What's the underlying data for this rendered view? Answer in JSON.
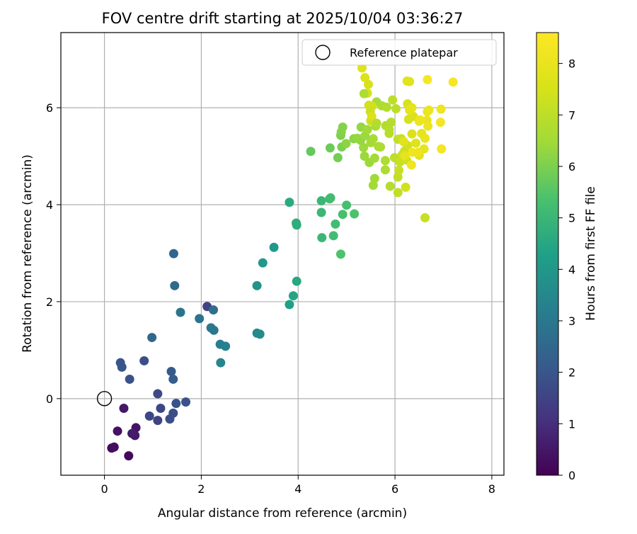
{
  "chart_data": {
    "type": "scatter",
    "title": "FOV centre drift starting at 2025/10/04 03:36:27",
    "xlabel": "Angular distance from reference (arcmin)",
    "ylabel": "Rotation from reference (arcmin)",
    "xlim": [
      -0.9,
      8.25
    ],
    "ylim": [
      -1.58,
      7.55
    ],
    "xticks": [
      0,
      2,
      4,
      6,
      8
    ],
    "yticks": [
      0,
      2,
      4,
      6
    ],
    "grid": true,
    "legend_position": "top-right",
    "legend": {
      "label": "Reference platepar",
      "marker": "open-circle"
    },
    "reference_point": {
      "x": 0,
      "y": 0
    },
    "colorbar": {
      "label": "Hours from first FF file",
      "range": [
        0,
        8.6
      ],
      "ticks": [
        0,
        1,
        2,
        3,
        4,
        5,
        6,
        7,
        8
      ],
      "colormap": "viridis"
    },
    "points": [
      {
        "x": 0.15,
        "y": -1.02,
        "h": 0.2
      },
      {
        "x": 0.2,
        "y": -1.0,
        "h": 0.3
      },
      {
        "x": 0.27,
        "y": -0.67,
        "h": 0.35
      },
      {
        "x": 0.5,
        "y": -1.18,
        "h": 0.2
      },
      {
        "x": 0.65,
        "y": -0.6,
        "h": 0.4
      },
      {
        "x": 0.63,
        "y": -0.76,
        "h": 0.5
      },
      {
        "x": 0.57,
        "y": -0.72,
        "h": 0.6
      },
      {
        "x": 0.4,
        "y": -0.2,
        "h": 0.5
      },
      {
        "x": 0.33,
        "y": 0.74,
        "h": 2.0
      },
      {
        "x": 0.36,
        "y": 0.65,
        "h": 2.0
      },
      {
        "x": 0.52,
        "y": 0.4,
        "h": 1.9
      },
      {
        "x": 0.82,
        "y": 0.78,
        "h": 1.8
      },
      {
        "x": 0.93,
        "y": -0.36,
        "h": 1.6
      },
      {
        "x": 1.1,
        "y": -0.45,
        "h": 1.5
      },
      {
        "x": 1.1,
        "y": 0.1,
        "h": 1.7
      },
      {
        "x": 1.16,
        "y": -0.2,
        "h": 1.6
      },
      {
        "x": 1.35,
        "y": -0.42,
        "h": 1.8
      },
      {
        "x": 1.42,
        "y": -0.3,
        "h": 1.8
      },
      {
        "x": 1.48,
        "y": -0.1,
        "h": 1.9
      },
      {
        "x": 1.68,
        "y": -0.07,
        "h": 1.9
      },
      {
        "x": 1.38,
        "y": 0.56,
        "h": 2.1
      },
      {
        "x": 1.42,
        "y": 0.4,
        "h": 2.2
      },
      {
        "x": 0.98,
        "y": 1.26,
        "h": 2.5
      },
      {
        "x": 1.43,
        "y": 2.99,
        "h": 2.5
      },
      {
        "x": 1.45,
        "y": 2.33,
        "h": 2.6
      },
      {
        "x": 1.57,
        "y": 1.78,
        "h": 2.9
      },
      {
        "x": 1.96,
        "y": 1.65,
        "h": 2.9
      },
      {
        "x": 2.12,
        "y": 1.9,
        "h": 1.5
      },
      {
        "x": 2.25,
        "y": 1.83,
        "h": 2.7
      },
      {
        "x": 2.2,
        "y": 1.46,
        "h": 3.0
      },
      {
        "x": 2.26,
        "y": 1.41,
        "h": 3.0
      },
      {
        "x": 2.39,
        "y": 1.12,
        "h": 3.2
      },
      {
        "x": 2.5,
        "y": 1.08,
        "h": 3.3
      },
      {
        "x": 2.4,
        "y": 0.74,
        "h": 3.4
      },
      {
        "x": 3.15,
        "y": 1.35,
        "h": 3.5
      },
      {
        "x": 3.21,
        "y": 1.33,
        "h": 3.6
      },
      {
        "x": 3.15,
        "y": 2.33,
        "h": 3.9
      },
      {
        "x": 3.27,
        "y": 2.8,
        "h": 4.0
      },
      {
        "x": 3.5,
        "y": 3.12,
        "h": 4.0
      },
      {
        "x": 3.82,
        "y": 1.94,
        "h": 4.3
      },
      {
        "x": 3.9,
        "y": 2.12,
        "h": 4.4
      },
      {
        "x": 3.97,
        "y": 2.42,
        "h": 4.5
      },
      {
        "x": 3.82,
        "y": 4.05,
        "h": 4.6
      },
      {
        "x": 3.96,
        "y": 3.62,
        "h": 4.7
      },
      {
        "x": 3.97,
        "y": 3.58,
        "h": 4.7
      },
      {
        "x": 4.48,
        "y": 4.08,
        "h": 5.0
      },
      {
        "x": 4.48,
        "y": 3.84,
        "h": 5.0
      },
      {
        "x": 4.49,
        "y": 3.32,
        "h": 5.0
      },
      {
        "x": 4.65,
        "y": 4.12,
        "h": 5.2
      },
      {
        "x": 4.67,
        "y": 4.14,
        "h": 5.2
      },
      {
        "x": 4.77,
        "y": 3.6,
        "h": 5.2
      },
      {
        "x": 4.73,
        "y": 3.36,
        "h": 5.2
      },
      {
        "x": 4.88,
        "y": 2.98,
        "h": 5.4
      },
      {
        "x": 4.92,
        "y": 3.8,
        "h": 5.3
      },
      {
        "x": 5.0,
        "y": 3.99,
        "h": 5.3
      },
      {
        "x": 5.16,
        "y": 3.81,
        "h": 5.4
      },
      {
        "x": 4.26,
        "y": 5.1,
        "h": 5.7
      },
      {
        "x": 4.66,
        "y": 5.17,
        "h": 5.8
      },
      {
        "x": 4.82,
        "y": 4.97,
        "h": 5.9
      },
      {
        "x": 4.9,
        "y": 5.19,
        "h": 6.0
      },
      {
        "x": 4.88,
        "y": 5.43,
        "h": 6.0
      },
      {
        "x": 4.92,
        "y": 5.6,
        "h": 6.1
      },
      {
        "x": 4.89,
        "y": 5.5,
        "h": 6.1
      },
      {
        "x": 4.99,
        "y": 5.26,
        "h": 6.2
      },
      {
        "x": 5.15,
        "y": 5.36,
        "h": 6.2
      },
      {
        "x": 5.22,
        "y": 5.37,
        "h": 6.3
      },
      {
        "x": 5.29,
        "y": 5.33,
        "h": 6.3
      },
      {
        "x": 5.35,
        "y": 5.18,
        "h": 6.4
      },
      {
        "x": 5.3,
        "y": 5.6,
        "h": 6.3
      },
      {
        "x": 5.38,
        "y": 5.42,
        "h": 6.4
      },
      {
        "x": 5.43,
        "y": 5.55,
        "h": 6.5
      },
      {
        "x": 5.5,
        "y": 5.28,
        "h": 6.5
      },
      {
        "x": 5.37,
        "y": 5.0,
        "h": 6.4
      },
      {
        "x": 5.47,
        "y": 4.87,
        "h": 6.4
      },
      {
        "x": 5.58,
        "y": 4.96,
        "h": 6.5
      },
      {
        "x": 5.55,
        "y": 4.4,
        "h": 6.5
      },
      {
        "x": 5.58,
        "y": 4.54,
        "h": 6.5
      },
      {
        "x": 5.55,
        "y": 5.36,
        "h": 6.6
      },
      {
        "x": 5.66,
        "y": 5.2,
        "h": 6.6
      },
      {
        "x": 5.7,
        "y": 5.19,
        "h": 6.7
      },
      {
        "x": 5.6,
        "y": 5.62,
        "h": 6.6
      },
      {
        "x": 5.62,
        "y": 6.12,
        "h": 6.6
      },
      {
        "x": 5.73,
        "y": 6.04,
        "h": 6.7
      },
      {
        "x": 5.83,
        "y": 6.01,
        "h": 6.8
      },
      {
        "x": 5.8,
        "y": 4.72,
        "h": 6.7
      },
      {
        "x": 5.8,
        "y": 4.91,
        "h": 6.7
      },
      {
        "x": 5.81,
        "y": 5.63,
        "h": 6.8
      },
      {
        "x": 5.88,
        "y": 5.47,
        "h": 6.9
      },
      {
        "x": 5.88,
        "y": 5.55,
        "h": 6.9
      },
      {
        "x": 5.92,
        "y": 5.7,
        "h": 6.9
      },
      {
        "x": 5.9,
        "y": 4.38,
        "h": 6.9
      },
      {
        "x": 5.99,
        "y": 4.97,
        "h": 7.0
      },
      {
        "x": 5.95,
        "y": 6.16,
        "h": 7.0
      },
      {
        "x": 6.02,
        "y": 5.98,
        "h": 7.0
      },
      {
        "x": 6.06,
        "y": 4.25,
        "h": 7.1
      },
      {
        "x": 6.06,
        "y": 4.57,
        "h": 7.1
      },
      {
        "x": 6.08,
        "y": 4.71,
        "h": 7.2
      },
      {
        "x": 6.1,
        "y": 4.88,
        "h": 7.2
      },
      {
        "x": 6.06,
        "y": 5.35,
        "h": 7.1
      },
      {
        "x": 6.13,
        "y": 5.36,
        "h": 7.2
      },
      {
        "x": 6.15,
        "y": 5.03,
        "h": 7.3
      },
      {
        "x": 6.2,
        "y": 5.11,
        "h": 7.3
      },
      {
        "x": 6.22,
        "y": 4.36,
        "h": 7.4
      },
      {
        "x": 6.24,
        "y": 4.92,
        "h": 7.4
      },
      {
        "x": 6.26,
        "y": 5.22,
        "h": 7.4
      },
      {
        "x": 6.28,
        "y": 5.76,
        "h": 7.5
      },
      {
        "x": 6.26,
        "y": 6.08,
        "h": 7.5
      },
      {
        "x": 6.35,
        "y": 5.46,
        "h": 7.6
      },
      {
        "x": 6.38,
        "y": 5.82,
        "h": 7.6
      },
      {
        "x": 6.3,
        "y": 6.54,
        "h": 7.7
      },
      {
        "x": 6.43,
        "y": 5.27,
        "h": 7.7
      },
      {
        "x": 6.5,
        "y": 5.02,
        "h": 7.8
      },
      {
        "x": 6.55,
        "y": 5.47,
        "h": 7.9
      },
      {
        "x": 6.6,
        "y": 5.15,
        "h": 7.9
      },
      {
        "x": 6.62,
        "y": 5.37,
        "h": 8.0
      },
      {
        "x": 6.67,
        "y": 5.92,
        "h": 8.0
      },
      {
        "x": 6.66,
        "y": 5.74,
        "h": 8.0
      },
      {
        "x": 6.68,
        "y": 5.62,
        "h": 8.1
      },
      {
        "x": 6.7,
        "y": 5.95,
        "h": 8.1
      },
      {
        "x": 6.62,
        "y": 3.73,
        "h": 7.2
      },
      {
        "x": 6.95,
        "y": 5.97,
        "h": 8.2
      },
      {
        "x": 6.94,
        "y": 5.7,
        "h": 8.3
      },
      {
        "x": 6.96,
        "y": 5.15,
        "h": 8.3
      },
      {
        "x": 7.2,
        "y": 6.53,
        "h": 8.4
      },
      {
        "x": 6.67,
        "y": 6.58,
        "h": 8.4
      },
      {
        "x": 6.52,
        "y": 5.75,
        "h": 8.3
      },
      {
        "x": 6.36,
        "y": 5.08,
        "h": 8.2
      },
      {
        "x": 6.34,
        "y": 4.82,
        "h": 8.2
      },
      {
        "x": 6.48,
        "y": 5.08,
        "h": 8.1
      },
      {
        "x": 6.5,
        "y": 5.72,
        "h": 8.1
      },
      {
        "x": 6.2,
        "y": 5.01,
        "h": 7.9
      },
      {
        "x": 5.32,
        "y": 6.82,
        "h": 7.7
      },
      {
        "x": 5.38,
        "y": 6.62,
        "h": 7.6
      },
      {
        "x": 5.45,
        "y": 6.48,
        "h": 7.5
      },
      {
        "x": 5.43,
        "y": 6.3,
        "h": 7.5
      },
      {
        "x": 5.46,
        "y": 6.05,
        "h": 7.4
      },
      {
        "x": 5.53,
        "y": 6.03,
        "h": 7.4
      },
      {
        "x": 5.49,
        "y": 5.92,
        "h": 7.3
      },
      {
        "x": 5.5,
        "y": 5.73,
        "h": 7.3
      },
      {
        "x": 5.52,
        "y": 5.82,
        "h": 7.6
      },
      {
        "x": 5.36,
        "y": 6.29,
        "h": 6.7
      },
      {
        "x": 5.62,
        "y": 5.68,
        "h": 6.8
      },
      {
        "x": 6.25,
        "y": 6.55,
        "h": 7.8
      },
      {
        "x": 6.3,
        "y": 5.95,
        "h": 7.9
      },
      {
        "x": 6.35,
        "y": 6.0,
        "h": 7.9
      },
      {
        "x": 6.18,
        "y": 5.3,
        "h": 7.8
      }
    ]
  }
}
